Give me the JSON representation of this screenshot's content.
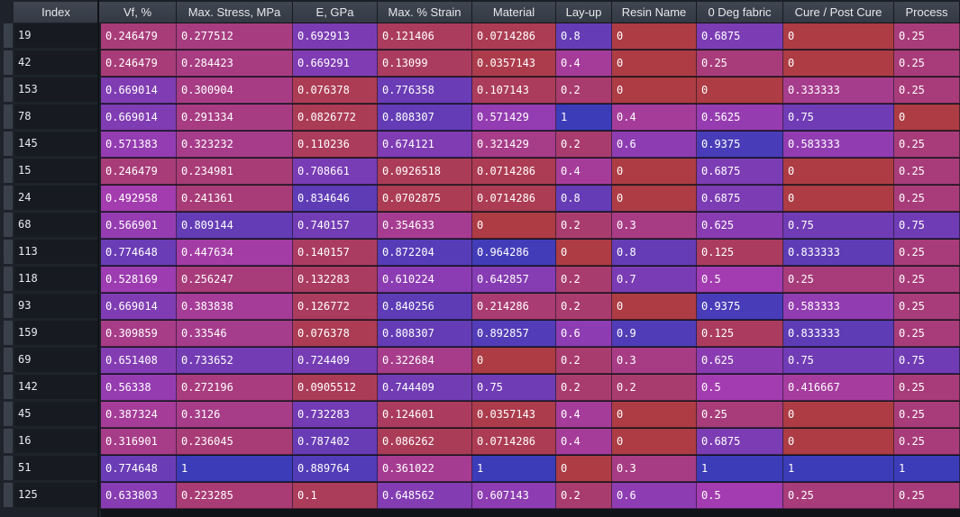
{
  "columns": [
    "Vf, %",
    "Max. Stress, MPa",
    "E, GPa",
    "Max. % Strain",
    "Material",
    "Lay-up",
    "Resin Name",
    "0 Deg fabric",
    "Cure / Post Cure",
    "Process"
  ],
  "index_header": "Index",
  "colors": {
    "low": "#ad3c44",
    "high": "#3c3cb9",
    "mid": "#a33cb0"
  },
  "rows": [
    {
      "index": "19",
      "values": [
        "0.246479",
        "0.277512",
        "0.692913",
        "0.121406",
        "0.0714286",
        "0.8",
        "0",
        "0.6875",
        "0",
        "0.25"
      ]
    },
    {
      "index": "42",
      "values": [
        "0.246479",
        "0.284423",
        "0.669291",
        "0.13099",
        "0.0357143",
        "0.4",
        "0",
        "0.25",
        "0",
        "0.25"
      ]
    },
    {
      "index": "153",
      "values": [
        "0.669014",
        "0.300904",
        "0.076378",
        "0.776358",
        "0.107143",
        "0.2",
        "0",
        "0",
        "0.333333",
        "0.25"
      ]
    },
    {
      "index": "78",
      "values": [
        "0.669014",
        "0.291334",
        "0.0826772",
        "0.808307",
        "0.571429",
        "1",
        "0.4",
        "0.5625",
        "0.75",
        "0"
      ]
    },
    {
      "index": "145",
      "values": [
        "0.571383",
        "0.323232",
        "0.110236",
        "0.674121",
        "0.321429",
        "0.2",
        "0.6",
        "0.9375",
        "0.583333",
        "0.25"
      ]
    },
    {
      "index": "15",
      "values": [
        "0.246479",
        "0.234981",
        "0.708661",
        "0.0926518",
        "0.0714286",
        "0.4",
        "0",
        "0.6875",
        "0",
        "0.25"
      ]
    },
    {
      "index": "24",
      "values": [
        "0.492958",
        "0.241361",
        "0.834646",
        "0.0702875",
        "0.0714286",
        "0.8",
        "0",
        "0.6875",
        "0",
        "0.25"
      ]
    },
    {
      "index": "68",
      "values": [
        "0.566901",
        "0.809144",
        "0.740157",
        "0.354633",
        "0",
        "0.2",
        "0.3",
        "0.625",
        "0.75",
        "0.75"
      ]
    },
    {
      "index": "113",
      "values": [
        "0.774648",
        "0.447634",
        "0.140157",
        "0.872204",
        "0.964286",
        "0",
        "0.8",
        "0.125",
        "0.833333",
        "0.25"
      ]
    },
    {
      "index": "118",
      "values": [
        "0.528169",
        "0.256247",
        "0.132283",
        "0.610224",
        "0.642857",
        "0.2",
        "0.7",
        "0.5",
        "0.25",
        "0.25"
      ]
    },
    {
      "index": "93",
      "values": [
        "0.669014",
        "0.383838",
        "0.126772",
        "0.840256",
        "0.214286",
        "0.2",
        "0",
        "0.9375",
        "0.583333",
        "0.25"
      ]
    },
    {
      "index": "159",
      "values": [
        "0.309859",
        "0.33546",
        "0.076378",
        "0.808307",
        "0.892857",
        "0.6",
        "0.9",
        "0.125",
        "0.833333",
        "0.25"
      ]
    },
    {
      "index": "69",
      "values": [
        "0.651408",
        "0.733652",
        "0.724409",
        "0.322684",
        "0",
        "0.2",
        "0.3",
        "0.625",
        "0.75",
        "0.75"
      ]
    },
    {
      "index": "142",
      "values": [
        "0.56338",
        "0.272196",
        "0.0905512",
        "0.744409",
        "0.75",
        "0.2",
        "0.2",
        "0.5",
        "0.416667",
        "0.25"
      ]
    },
    {
      "index": "45",
      "values": [
        "0.387324",
        "0.3126",
        "0.732283",
        "0.124601",
        "0.0357143",
        "0.4",
        "0",
        "0.25",
        "0",
        "0.25"
      ]
    },
    {
      "index": "16",
      "values": [
        "0.316901",
        "0.236045",
        "0.787402",
        "0.086262",
        "0.0714286",
        "0.4",
        "0",
        "0.6875",
        "0",
        "0.25"
      ]
    },
    {
      "index": "51",
      "values": [
        "0.774648",
        "1",
        "0.889764",
        "0.361022",
        "1",
        "0",
        "0.3",
        "1",
        "1",
        "1"
      ]
    },
    {
      "index": "125",
      "values": [
        "0.633803",
        "0.223285",
        "0.1",
        "0.648562",
        "0.607143",
        "0.2",
        "0.6",
        "0.5",
        "0.25",
        "0.25"
      ]
    }
  ]
}
